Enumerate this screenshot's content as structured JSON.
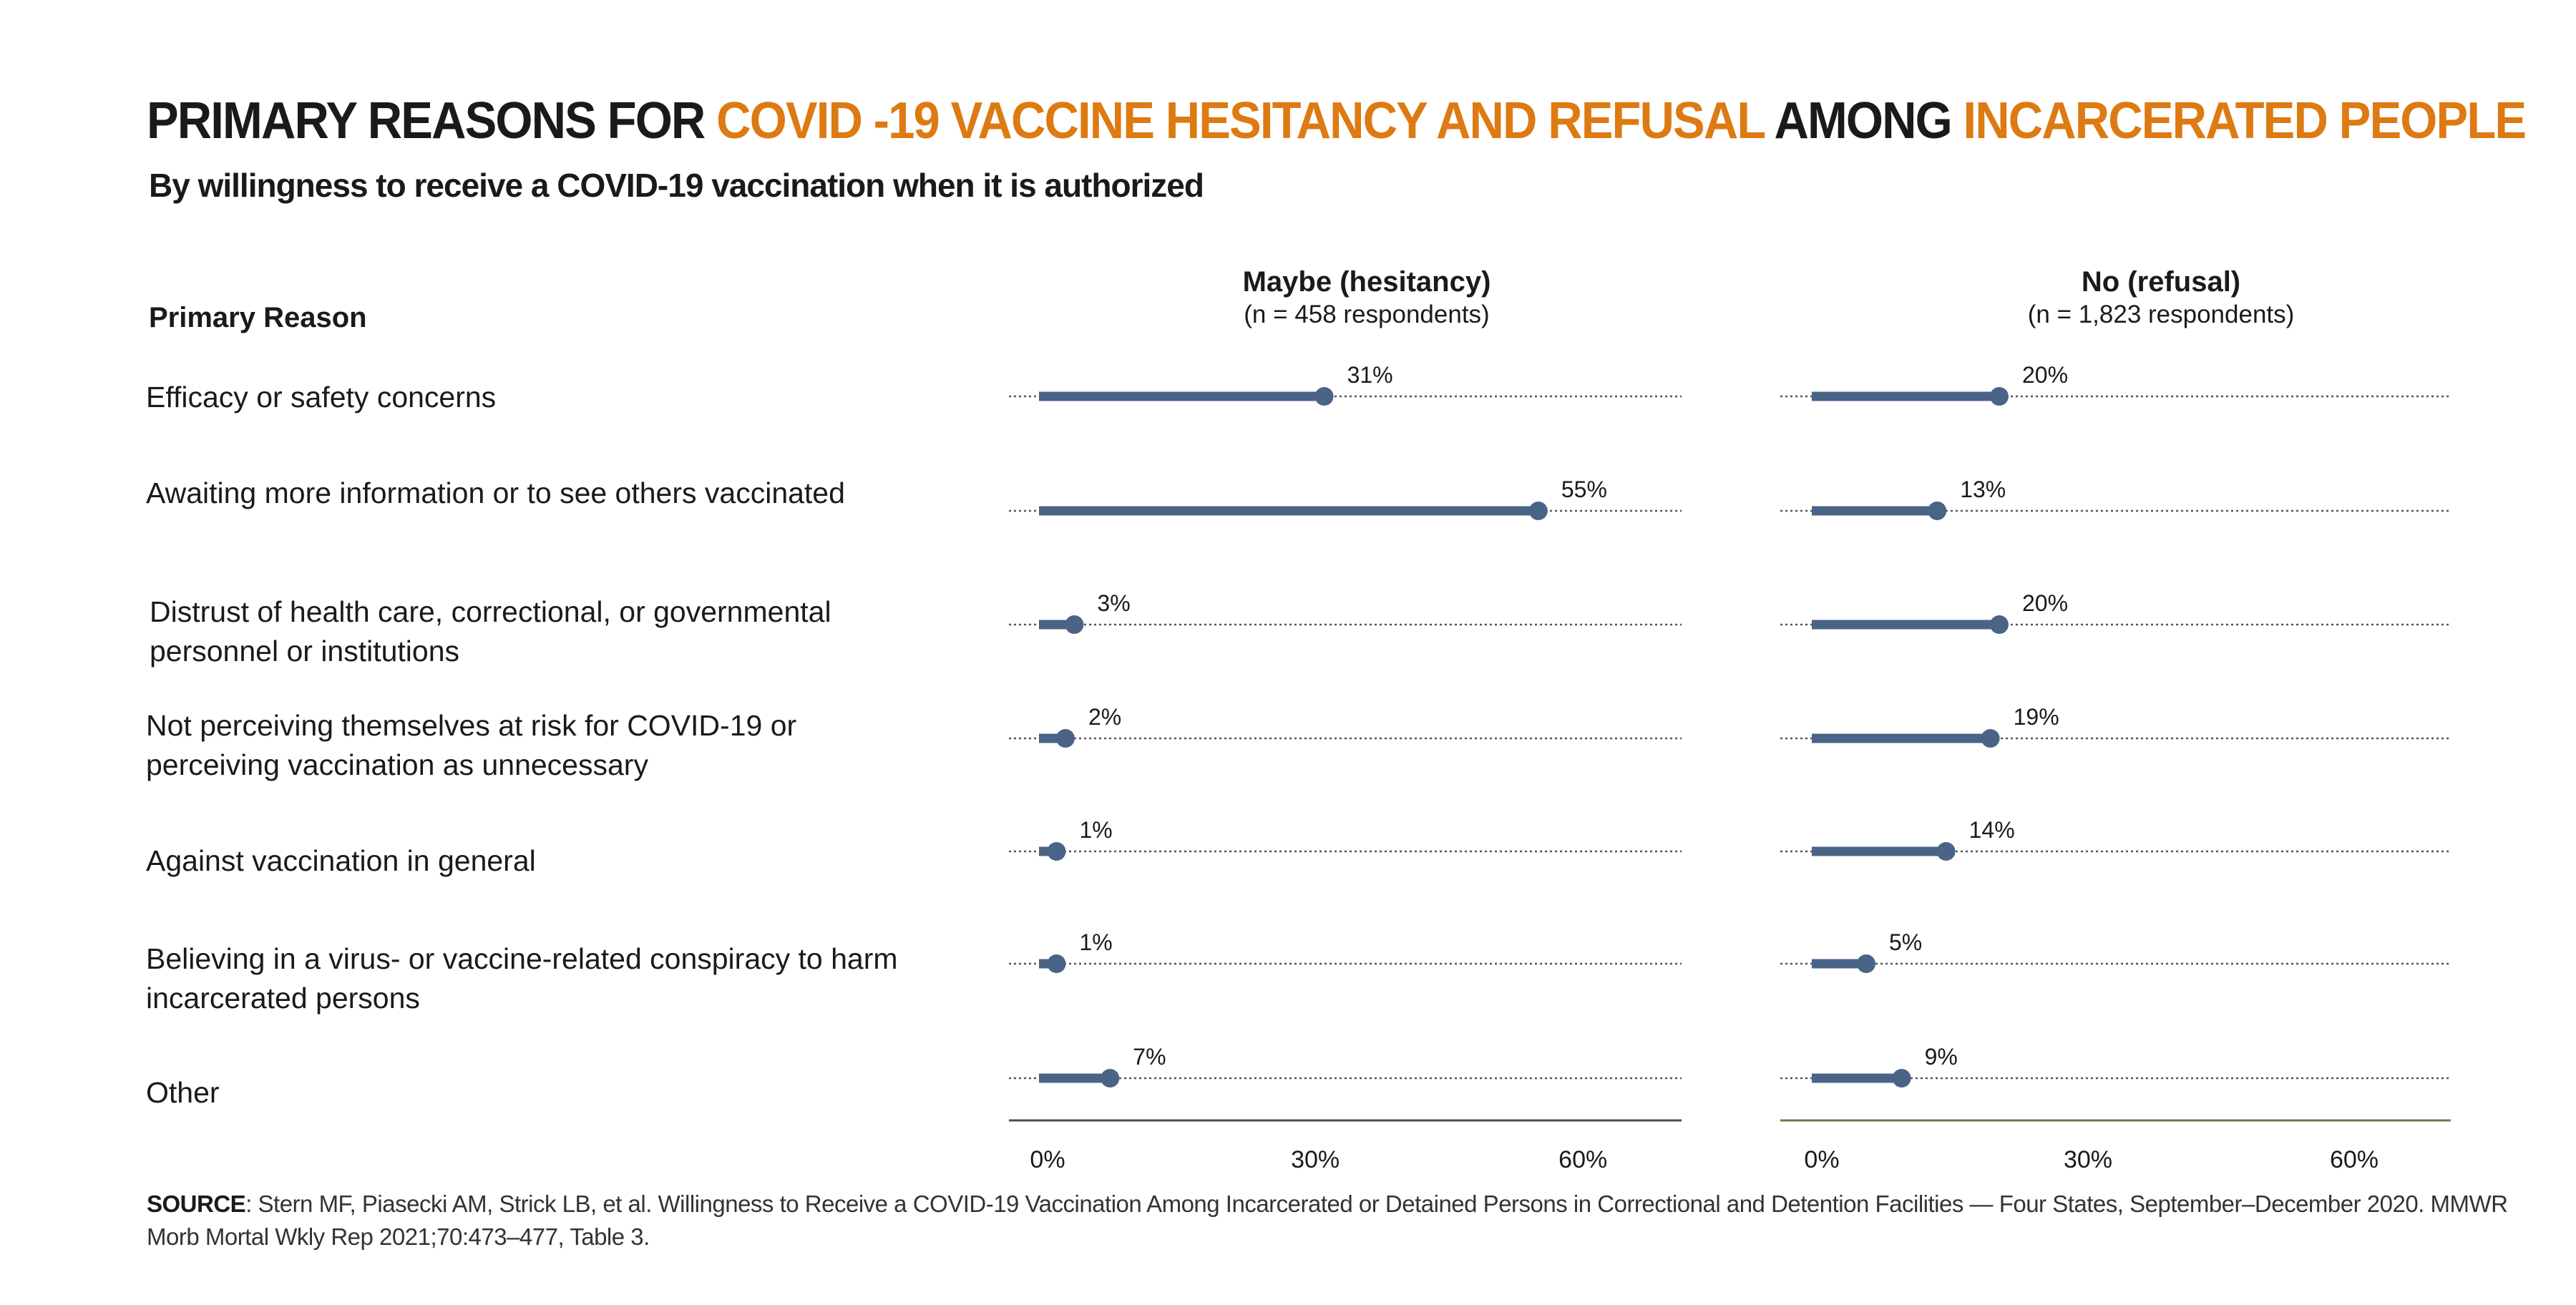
{
  "title": {
    "part1": "PRIMARY REASONS FOR ",
    "part2": "COVID -19 VACCINE HESITANCY AND REFUSAL",
    "part3": " AMONG ",
    "part4": "INCARCERATED PEOPLE"
  },
  "subtitle": "By willingness to receive a COVID-19 vaccination when it is authorized",
  "reason_header": "Primary Reason",
  "colors": {
    "accent": "#dd7a12",
    "bar": "#4a6487",
    "title": "#1a1a1a"
  },
  "chart_data": {
    "type": "dot-bar",
    "categories": [
      "Efficacy or safety concerns",
      "Awaiting more information or to see others vaccinated",
      "Distrust of health care, correctional, or governmental\npersonnel or institutions",
      "Not perceiving themselves at risk for COVID-19 or\nperceiving vaccination as unnecessary",
      "Against vaccination in general",
      "Believing in a virus- or vaccine-related conspiracy to harm\nincarcerated persons",
      "Other"
    ],
    "panels": [
      {
        "name": "Maybe (hesitancy)",
        "n_label": "(n = 458 respondents)",
        "values": [
          31,
          55,
          3,
          2,
          1,
          1,
          7
        ],
        "labels": [
          "31%",
          "55%",
          "3%",
          "2%",
          "1%",
          "1%",
          "7%"
        ]
      },
      {
        "name": "No (refusal)",
        "n_label": "(n = 1,823 respondents)",
        "values": [
          20,
          13,
          20,
          19,
          14,
          5,
          9
        ],
        "labels": [
          "20%",
          "13%",
          "20%",
          "19%",
          "14%",
          "5%",
          "9%"
        ]
      }
    ],
    "x_ticks": [
      "0%",
      "30%",
      "60%"
    ],
    "xlim": [
      0,
      70
    ],
    "grid": "dotted row lines"
  },
  "source": {
    "label": "SOURCE",
    "text": ": Stern MF, Piasecki AM, Strick LB, et al. Willingness to Receive a COVID-19 Vaccination Among Incarcerated or Detained Persons in  Correctional and Detention Facilities — Four States, September–December 2020. MMWR Morb Mortal Wkly Rep 2021;70:473–477, Table 3."
  }
}
